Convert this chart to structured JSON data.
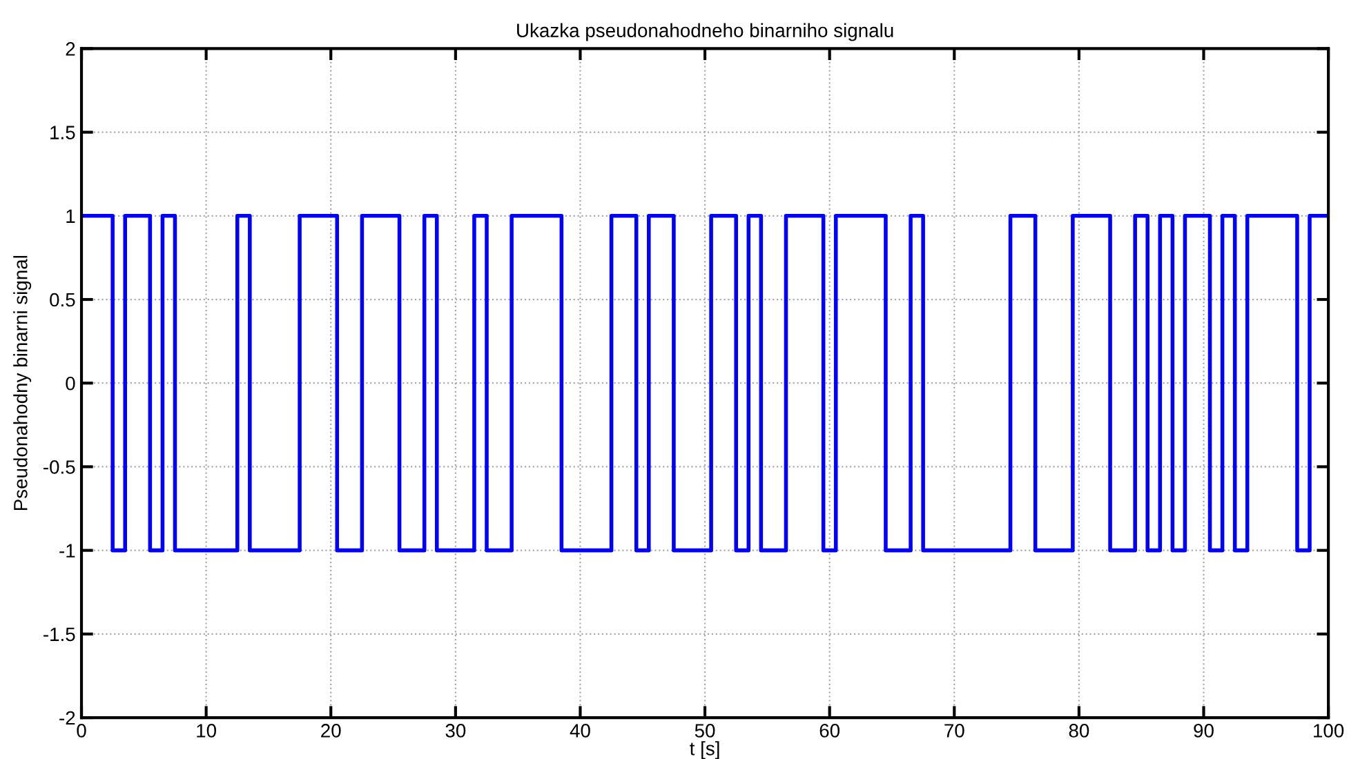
{
  "chart_data": {
    "type": "step",
    "title": "Ukazka pseudonahodneho binarniho signalu",
    "xlabel": "t [s]",
    "ylabel": "Pseudonahodny binarni signal",
    "x": [
      0,
      2.5,
      3.5,
      5.5,
      6.5,
      7.5,
      12.5,
      13.5,
      17.5,
      20.5,
      22.5,
      25.5,
      27.5,
      28.5,
      31.5,
      32.5,
      34.5,
      38.5,
      42.5,
      44.5,
      45.5,
      47.5,
      50.5,
      52.5,
      53.5,
      54.5,
      56.5,
      59.5,
      60.5,
      64.5,
      66.5,
      67.5,
      74.5,
      76.5,
      79.5,
      82.5,
      84.5,
      85.5,
      86.5,
      87.5,
      88.5,
      90.5,
      91.5,
      92.5,
      93.5,
      97.5,
      98.5,
      100
    ],
    "series": [
      {
        "color": "#0000ff",
        "values": [
          1,
          -1,
          1,
          -1,
          1,
          -1,
          1,
          -1,
          1,
          -1,
          1,
          -1,
          1,
          -1,
          1,
          -1,
          1,
          -1,
          1,
          -1,
          1,
          -1,
          1,
          -1,
          1,
          -1,
          1,
          -1,
          1,
          -1,
          1,
          -1,
          1,
          -1,
          1,
          -1,
          1,
          -1,
          1,
          -1,
          1,
          -1,
          1,
          -1,
          1,
          -1,
          1,
          1
        ]
      }
    ],
    "xlim": [
      0,
      100
    ],
    "ylim": [
      -2,
      2
    ],
    "xticks": [
      0,
      10,
      20,
      30,
      40,
      50,
      60,
      70,
      80,
      90,
      100
    ],
    "yticks": [
      -2,
      -1.5,
      -1,
      -0.5,
      0,
      0.5,
      1,
      1.5,
      2
    ],
    "grid": true,
    "line_style": "solid",
    "marker": "none"
  }
}
